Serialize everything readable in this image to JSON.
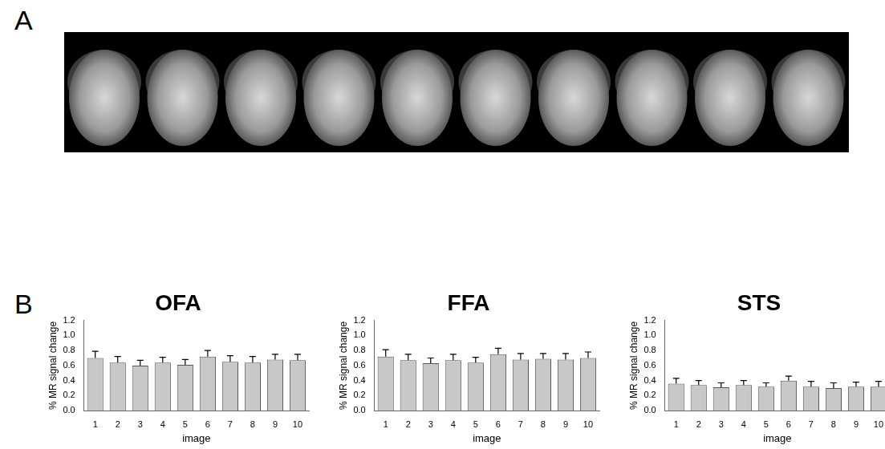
{
  "panel_labels": [
    "A",
    "B"
  ],
  "chart_data": [
    {
      "type": "bar",
      "title": "OFA",
      "x_label": "image",
      "y_label": "% MR signal change",
      "categories": [
        "1",
        "2",
        "3",
        "4",
        "5",
        "6",
        "7",
        "8",
        "9",
        "10"
      ],
      "values": [
        0.7,
        0.64,
        0.6,
        0.64,
        0.61,
        0.72,
        0.65,
        0.64,
        0.68,
        0.67
      ],
      "errors": [
        0.09,
        0.08,
        0.07,
        0.07,
        0.07,
        0.08,
        0.08,
        0.08,
        0.07,
        0.08
      ],
      "color": "#c8c8c8",
      "ylim": [
        0,
        1.2
      ],
      "yticks": [
        {
          "value": 0,
          "label": "0.0"
        },
        0.2,
        0.4,
        0.6,
        0.8,
        {
          "value": 1,
          "label": "1.0"
        },
        1.2
      ],
      "grid": false
    },
    {
      "type": "bar",
      "title": "FFA",
      "x_label": "image",
      "y_label": "% MR signal change",
      "categories": [
        "1",
        "2",
        "3",
        "4",
        "5",
        "6",
        "7",
        "8",
        "9",
        "10"
      ],
      "values": [
        0.72,
        0.67,
        0.63,
        0.67,
        0.64,
        0.75,
        0.68,
        0.69,
        0.68,
        0.7
      ],
      "errors": [
        0.09,
        0.08,
        0.07,
        0.08,
        0.07,
        0.08,
        0.08,
        0.07,
        0.08,
        0.08
      ],
      "color": "#c8c8c8",
      "ylim": [
        0,
        1.2
      ],
      "yticks": [
        {
          "value": 0,
          "label": "0.0"
        },
        0.2,
        0.4,
        0.6,
        0.8,
        {
          "value": 1,
          "label": "1.0"
        },
        1.2
      ],
      "grid": false
    },
    {
      "type": "bar",
      "title": "STS",
      "x_label": "image",
      "y_label": "% MR signal change",
      "categories": [
        "1",
        "2",
        "3",
        "4",
        "5",
        "6",
        "7",
        "8",
        "9",
        "10"
      ],
      "values": [
        0.36,
        0.34,
        0.31,
        0.34,
        0.32,
        0.4,
        0.32,
        0.3,
        0.32,
        0.32
      ],
      "errors": [
        0.07,
        0.06,
        0.06,
        0.06,
        0.05,
        0.06,
        0.07,
        0.07,
        0.06,
        0.07
      ],
      "color": "#c8c8c8",
      "ylim": [
        0,
        1.2
      ],
      "yticks": [
        {
          "value": 0,
          "label": "0.0"
        },
        0.2,
        0.4,
        0.6,
        0.8,
        {
          "value": 1,
          "label": "1.0"
        },
        1.2
      ],
      "grid": false
    }
  ]
}
